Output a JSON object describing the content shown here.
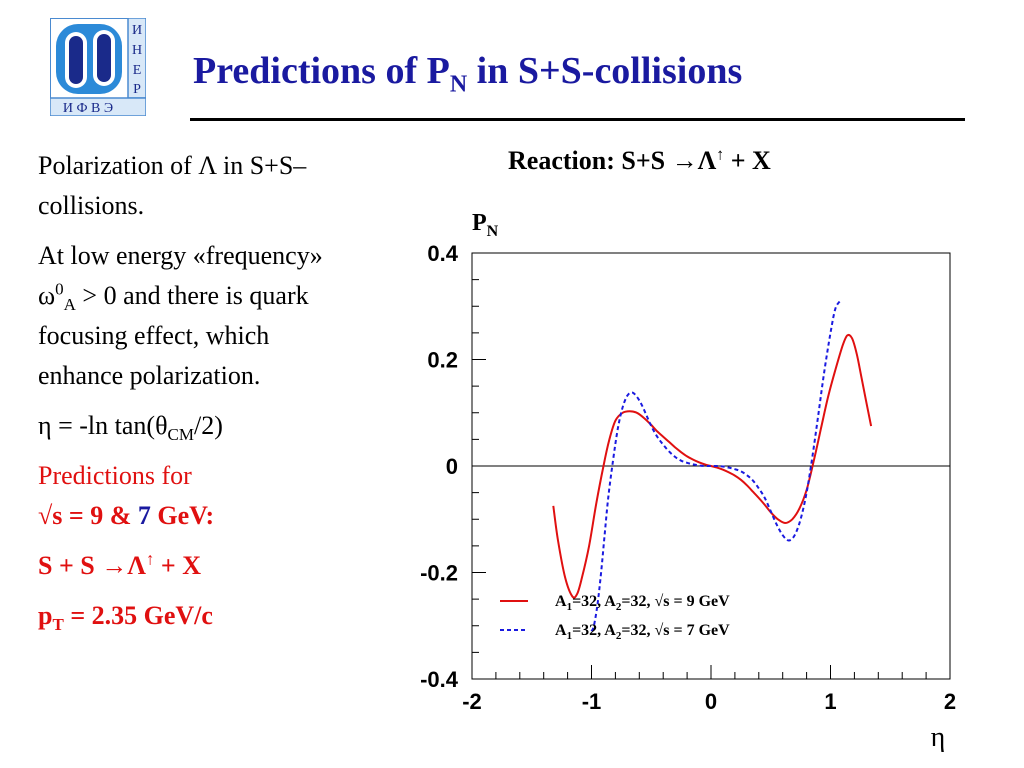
{
  "logo": {
    "side_letters": [
      "И",
      "Н",
      "Е",
      "Р"
    ],
    "bottom_letters": "И Ф В Э",
    "colors": {
      "outer": "#2c8ad8",
      "inner": "#1a2a8a",
      "letters": "#1a2a8a",
      "frame": "#4a8ad0"
    }
  },
  "header": {
    "title_main": "Predictions of P",
    "title_sub": "N",
    "title_rest": " in S+S-collisions"
  },
  "left": {
    "p1": "Polarization of   Λ in S+S–collisions.",
    "p2_a": "At low energy «frequency» ω",
    "p2_sup": "0",
    "p2_sub": "A",
    "p2_b": " > 0 and there is quark focusing effect, which enhance polarization.",
    "p3_a": "η = -ln tan(θ",
    "p3_sub": "CM",
    "p3_b": "/2)",
    "p4_line1": "Predictions for",
    "p4_line2_a": "√s = 9 & ",
    "p4_line2_blue": "7",
    "p4_line2_b": " GeV:",
    "p5_a": "S + S →Λ",
    "p5_sup": "↑",
    "p5_b": " + X",
    "p6_a": "p",
    "p6_sub": "T",
    "p6_b": " = 2.35 GeV/c"
  },
  "reaction": {
    "text_a": "Reaction: S+S →Λ",
    "sup": "↑",
    "text_b": " + X"
  },
  "chart_data": {
    "type": "line",
    "ylabel_main": "P",
    "ylabel_sub": "N",
    "xlabel": "η",
    "xlim": [
      -2,
      2
    ],
    "ylim": [
      -0.4,
      0.4
    ],
    "xticks": [
      -2,
      -1,
      0,
      1,
      2
    ],
    "xtick_labels": [
      "-2",
      "-1",
      "0",
      "1",
      "2"
    ],
    "yticks": [
      -0.4,
      -0.2,
      0,
      0.2,
      0.4
    ],
    "ytick_labels": [
      "-0.4",
      "-0.2",
      "0",
      "0.2",
      "0.4"
    ],
    "zero_line": true,
    "legend_position": "bottom-left",
    "series": [
      {
        "name": "A1=32,   A2=32,  √s = 9 GeV",
        "legend": {
          "a1": "A",
          "s1": "1",
          "t1": "=32,   A",
          "s2": "2",
          "t2": "=32,  √s = 9 GeV"
        },
        "color": "#e01010",
        "style": "solid",
        "x": [
          -1.32,
          -1.28,
          -1.22,
          -1.16,
          -1.12,
          -1.08,
          -1.02,
          -0.96,
          -0.9,
          -0.85,
          -0.8,
          -0.74,
          -0.68,
          -0.62,
          -0.56,
          -0.5,
          -0.45,
          -0.4,
          -0.35,
          -0.3,
          -0.25,
          -0.2,
          -0.15,
          -0.1,
          -0.05,
          0,
          0.05,
          0.1,
          0.15,
          0.2,
          0.25,
          0.3,
          0.35,
          0.4,
          0.45,
          0.5,
          0.56,
          0.62,
          0.68,
          0.74,
          0.8,
          0.86,
          0.92,
          0.98,
          1.04,
          1.1,
          1.14,
          1.18,
          1.22,
          1.26,
          1.3,
          1.34
        ],
        "y": [
          -0.075,
          -0.14,
          -0.21,
          -0.245,
          -0.24,
          -0.21,
          -0.15,
          -0.07,
          0.0,
          0.05,
          0.085,
          0.1,
          0.103,
          0.1,
          0.09,
          0.077,
          0.065,
          0.055,
          0.045,
          0.035,
          0.026,
          0.018,
          0.012,
          0.007,
          0.003,
          0.0,
          -0.003,
          -0.007,
          -0.012,
          -0.018,
          -0.026,
          -0.036,
          -0.048,
          -0.06,
          -0.073,
          -0.087,
          -0.1,
          -0.107,
          -0.1,
          -0.08,
          -0.045,
          0.01,
          0.07,
          0.13,
          0.18,
          0.225,
          0.245,
          0.24,
          0.21,
          0.165,
          0.12,
          0.075
        ]
      },
      {
        "name": "A1=32,   A2=32,  √s = 7 GeV",
        "legend": {
          "a1": "A",
          "s1": "1",
          "t1": "=32,   A",
          "s2": "2",
          "t2": "=32,  √s = 7 GeV"
        },
        "color": "#1a1ae0",
        "style": "dashed",
        "x": [
          -1.0,
          -0.98,
          -0.95,
          -0.92,
          -0.89,
          -0.86,
          -0.82,
          -0.78,
          -0.74,
          -0.7,
          -0.66,
          -0.62,
          -0.58,
          -0.54,
          -0.5,
          -0.45,
          -0.4,
          -0.35,
          -0.3,
          -0.25,
          -0.2,
          -0.15,
          -0.1,
          -0.05,
          0,
          0.05,
          0.1,
          0.15,
          0.2,
          0.25,
          0.3,
          0.35,
          0.4,
          0.45,
          0.5,
          0.55,
          0.6,
          0.65,
          0.7,
          0.75,
          0.8,
          0.85,
          0.9,
          0.95,
          1.0,
          1.04,
          1.08
        ],
        "y": [
          -0.31,
          -0.3,
          -0.26,
          -0.2,
          -0.13,
          -0.06,
          0.01,
          0.07,
          0.11,
          0.132,
          0.138,
          0.13,
          0.115,
          0.095,
          0.075,
          0.055,
          0.04,
          0.027,
          0.017,
          0.01,
          0.006,
          0.003,
          0.001,
          0.0,
          0.0,
          0.0,
          -0.001,
          -0.003,
          -0.006,
          -0.01,
          -0.017,
          -0.027,
          -0.042,
          -0.06,
          -0.085,
          -0.11,
          -0.13,
          -0.14,
          -0.13,
          -0.1,
          -0.05,
          0.02,
          0.1,
          0.18,
          0.25,
          0.295,
          0.31
        ]
      }
    ]
  }
}
